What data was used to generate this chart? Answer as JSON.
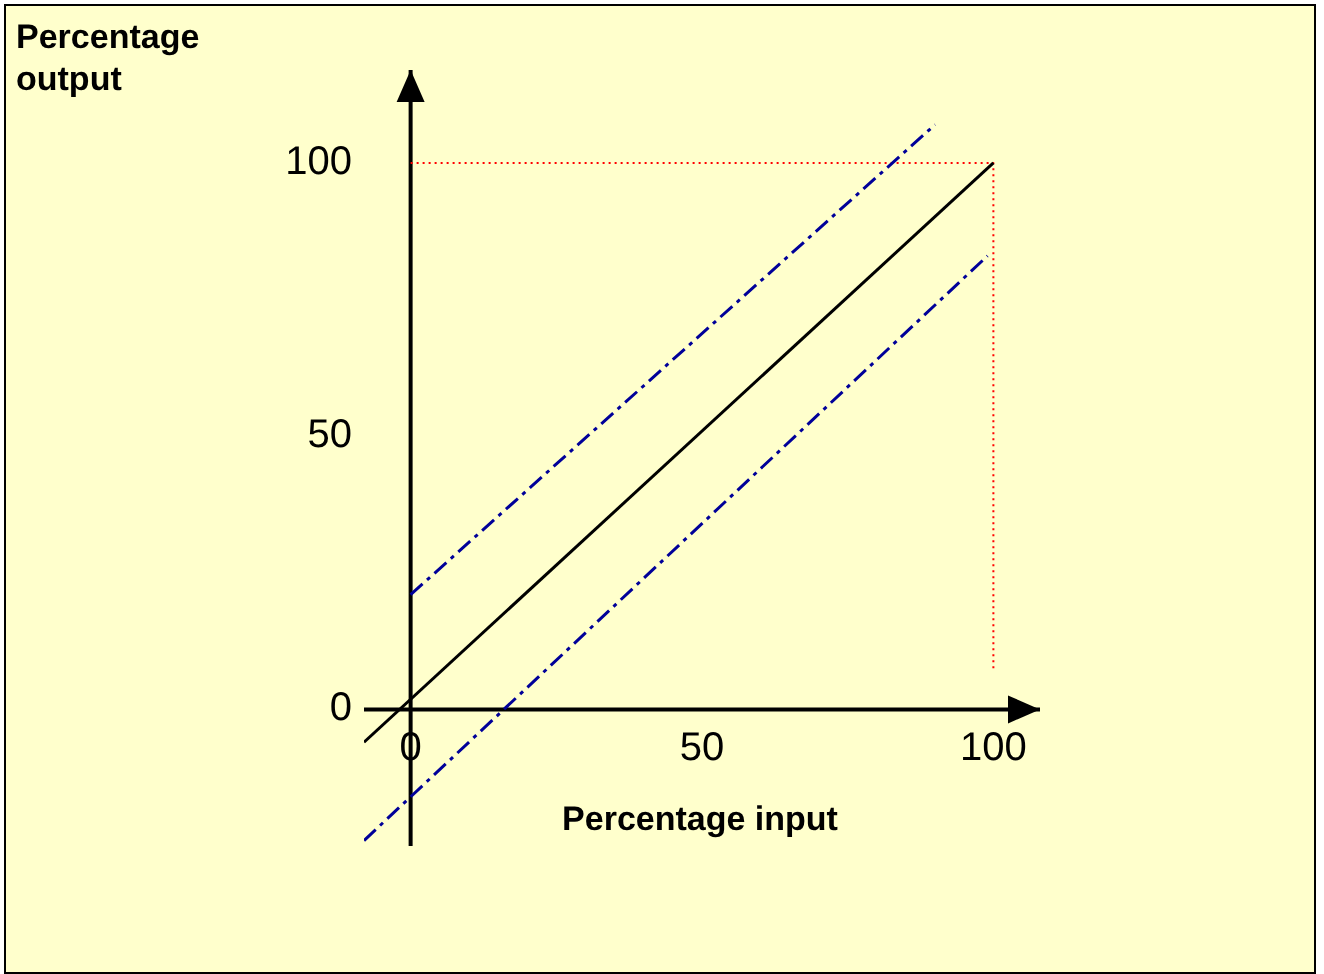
{
  "chart_data": {
    "type": "line",
    "xlabel": "Percentage input",
    "ylabel": "Percentage output",
    "xlim": [
      -8,
      108
    ],
    "ylim": [
      -25,
      117
    ],
    "xticks": [
      0,
      50,
      100
    ],
    "yticks": [
      0,
      50,
      100
    ],
    "grid": false,
    "legend": false,
    "marker": "none",
    "series": [
      {
        "x": [
          -8,
          100
        ],
        "values": [
          -6,
          100
        ],
        "color": "#000000",
        "line_style": "solid"
      },
      {
        "x": [
          0,
          90
        ],
        "values": [
          21,
          107
        ],
        "color": "#000099",
        "line_style": "dashed"
      },
      {
        "x": [
          -8,
          99
        ],
        "values": [
          -24,
          83
        ],
        "color": "#000099",
        "line_style": "dashed"
      },
      {
        "x": [
          0,
          100,
          100
        ],
        "values": [
          100,
          100,
          7
        ],
        "color": "#ff0000",
        "line_style": "dotted"
      }
    ]
  }
}
